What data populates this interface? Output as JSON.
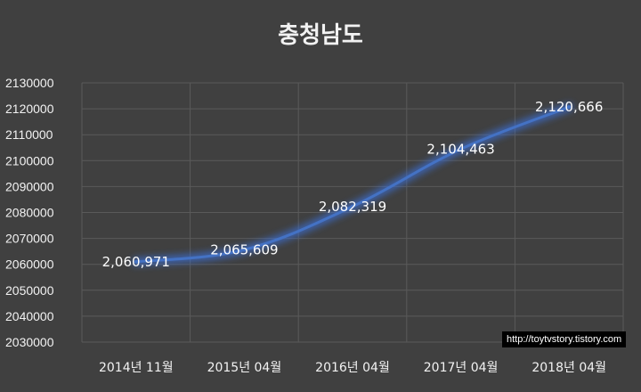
{
  "chart_data": {
    "type": "line",
    "title": "충청남도",
    "categories": [
      "2014년 11월",
      "2015년 04월",
      "2016년 04월",
      "2017년 04월",
      "2018년 04월"
    ],
    "series": [
      {
        "values": [
          2060971,
          2065609,
          2082319,
          2104463,
          2120666
        ],
        "data_labels": [
          "2,060,971",
          "2,065,609",
          "2,082,319",
          "2,104,463",
          "2,120,666"
        ]
      }
    ],
    "ylim": [
      2030000,
      2130000
    ],
    "yticks": [
      "2030000",
      "2040000",
      "2050000",
      "2060000",
      "2070000",
      "2080000",
      "2090000",
      "2100000",
      "2110000",
      "2120000",
      "2130000"
    ],
    "xlabel": "",
    "ylabel": "",
    "grid": true,
    "line_color": "#4472c4",
    "glow_color": "#3a6fd8",
    "background": "#404040"
  },
  "watermark": "http://toytvstory.tistory.com"
}
